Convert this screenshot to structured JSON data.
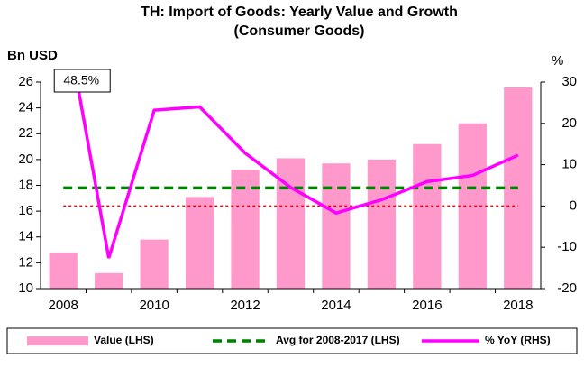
{
  "chart_data": {
    "type": "bar-line",
    "title": "TH: Import of Goods: Yearly Value and Growth",
    "subtitle": "(Consumer Goods)",
    "y_label": "Bn USD",
    "y2_label": "%",
    "categories": [
      "2008",
      null,
      "2010",
      null,
      "2012",
      null,
      "2014",
      null,
      "2016",
      null,
      "2018"
    ],
    "series": [
      {
        "name": "Value (LHS)",
        "color": "#ff99cc",
        "values": [
          12.8,
          11.2,
          13.8,
          17.1,
          19.2,
          20.1,
          19.7,
          20.0,
          21.2,
          22.8,
          25.6
        ]
      },
      {
        "name": "Avg for 2008-2017 (LHS)",
        "color": "#008000",
        "value": 17.8
      },
      {
        "name": "% YoY (RHS)",
        "color": "#ff00ff",
        "axis": "y2",
        "values": [
          48.5,
          -12.6,
          23.2,
          24.0,
          12.8,
          4.5,
          -1.7,
          1.5,
          5.9,
          7.4,
          12.3
        ],
        "value_labels": [
          "48.5%",
          null,
          null,
          null,
          null,
          null,
          null,
          null,
          null,
          null,
          null
        ]
      }
    ],
    "zero_line_color": "#ff0000",
    "ylim": [
      10,
      26
    ],
    "yticks": [
      10,
      12,
      14,
      16,
      18,
      20,
      22,
      24,
      26
    ],
    "y2lim": [
      -20,
      30
    ],
    "y2ticks": [
      -20,
      -10,
      0,
      10,
      20,
      30
    ]
  }
}
